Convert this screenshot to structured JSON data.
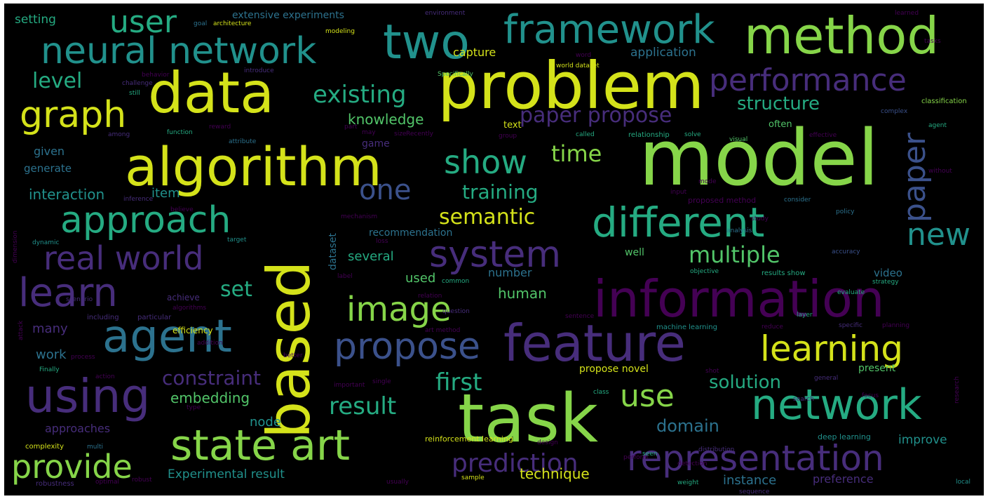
{
  "words": {
    "model": "model",
    "problem": "problem",
    "task": "task",
    "based": "based",
    "algorithm": "algorithm",
    "data": "data",
    "method": "method",
    "information": "information",
    "feature": "feature",
    "network_right": "network",
    "two": "two",
    "framework": "framework",
    "state_art": "state art",
    "neural_network": "neural network",
    "agent": "agent",
    "using": "using",
    "different": "different",
    "representation": "representation",
    "learning": "learning",
    "propose": "propose",
    "graph": "graph",
    "system": "system",
    "real_world": "real world",
    "user": "user",
    "approach": "approach",
    "learn": "learn",
    "performance": "performance",
    "provide": "provide",
    "image": "image",
    "paper": "paper",
    "show": "show",
    "new": "new",
    "one": "one",
    "use": "use",
    "prediction": "prediction",
    "existing": "existing",
    "paper_propose": "paper propose",
    "multiple": "multiple",
    "first": "first",
    "result": "result",
    "semantic": "semantic",
    "training": "training",
    "time": "time",
    "solution": "solution",
    "structure": "structure",
    "constraint": "constraint",
    "level": "level",
    "set": "set",
    "domain": "domain",
    "embedding": "embedding",
    "knowledge": "knowledge",
    "interaction": "interaction",
    "technique": "technique",
    "experimental_result": "Experimental result",
    "instance": "instance",
    "preference": "preference",
    "node": "node",
    "human": "human",
    "item": "item",
    "used": "used",
    "several": "several",
    "number": "number",
    "many": "many",
    "work": "work",
    "approaches": "approaches",
    "given": "given",
    "generate": "generate",
    "application": "application",
    "capture": "capture",
    "setting": "setting",
    "extensive_experiments": "extensive experiments",
    "recommendation": "recommendation",
    "dataset": "dataset",
    "game": "game",
    "text": "text",
    "often": "often",
    "video": "video",
    "well": "well",
    "propose_novel": "propose novel",
    "present": "present",
    "improve": "improve",
    "reinforcement_learning": "reinforcement learning",
    "deep_learning": "deep learning",
    "machine_learning": "machine learning",
    "efficiency": "efficiency",
    "achieve": "achieve",
    "complexity": "complexity",
    "robustness": "robustness",
    "optimal": "optimal",
    "sample": "sample",
    "including": "including",
    "particular": "particular",
    "proposed_method": "proposed method",
    "results_show": "results show",
    "relationship": "relationship",
    "classification": "classification",
    "environment": "environment",
    "learned": "learned",
    "goal": "goal",
    "architecture": "architecture",
    "modeling": "modeling",
    "world_dataset": "world dataset",
    "challenge": "challenge",
    "introduce": "introduce",
    "specifically": "Specifically",
    "reward": "reward",
    "attribute": "attribute",
    "function": "function",
    "among": "among",
    "called": "called",
    "recently": "Recently",
    "visual": "visual",
    "effective": "effective",
    "complex": "complex",
    "accuracy": "accuracy",
    "strategy": "strategy",
    "objective": "objective",
    "study": "study",
    "consider": "consider",
    "policy": "policy",
    "analysis": "analysis",
    "mechanism": "mechanism",
    "input": "input",
    "solve": "solve",
    "search": "search",
    "general": "general",
    "finally": "Finally",
    "class": "class",
    "single": "single",
    "important": "important",
    "design": "design",
    "detection": "detection",
    "distribution": "distribution",
    "perform": "perform",
    "weight": "weight",
    "sequence": "sequence",
    "local": "local",
    "process": "process",
    "scenario": "scenario",
    "dynamic": "dynamic",
    "target": "target",
    "relation": "relation",
    "question": "question",
    "layer": "layer",
    "specific": "specific",
    "planning": "planning",
    "reduce": "reduce",
    "label": "label",
    "common": "common",
    "loss": "loss",
    "evaluate": "evaluate",
    "without": "without",
    "agent_small": "agent",
    "word": "word",
    "sentence": "sentence",
    "type": "type",
    "multi": "multi",
    "addition": "addition",
    "action": "action",
    "believe": "believe",
    "inference": "inference",
    "still": "still",
    "part": "part",
    "may": "may",
    "size": "size",
    "group": "group",
    "behavior": "behavior",
    "tasks": "tasks",
    "dimension": "dimension",
    "attack": "attack",
    "robust": "robust",
    "usually": "usually",
    "seen": "seen",
    "better": "better",
    "research": "research",
    "focus": "focus",
    "mode": "mode",
    "shot": "shot",
    "art_method": "art method",
    "algorithms": "algorithms"
  }
}
